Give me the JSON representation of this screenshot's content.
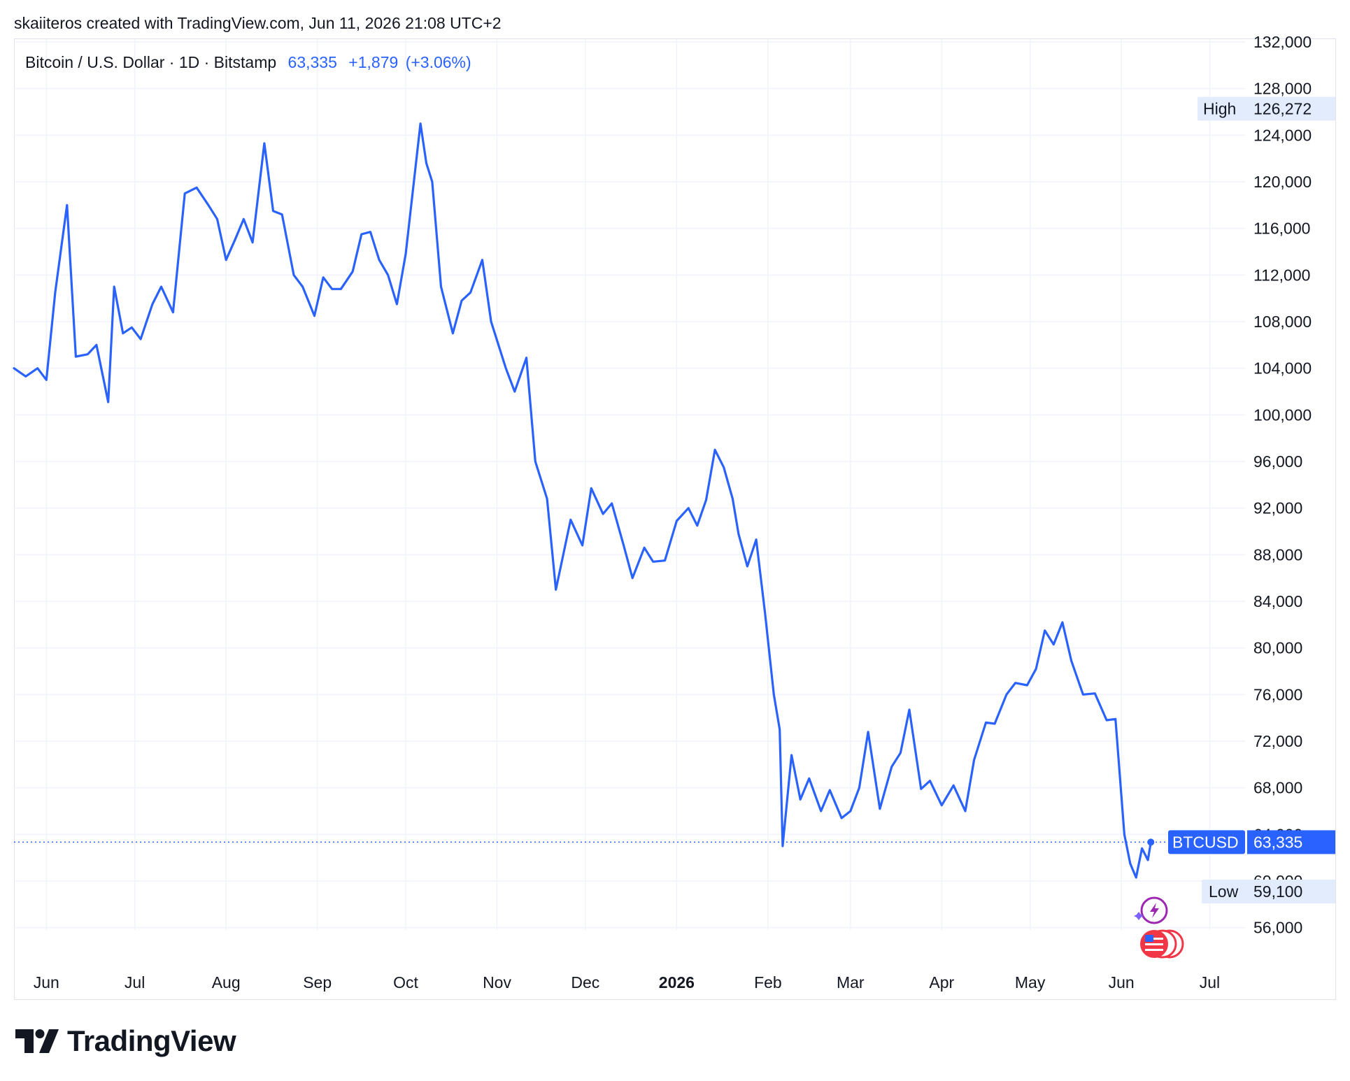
{
  "header": {
    "credit": "skaiiteros created with TradingView.com, Jun 11, 2026 21:08 UTC+2"
  },
  "legend": {
    "symbol": "Bitcoin / U.S. Dollar · 1D · Bitstamp",
    "last": "63,335",
    "change": "+1,879",
    "change_pct": "(+3.06%)"
  },
  "brand": {
    "name": "TradingView"
  },
  "colors": {
    "line": "#2962ff",
    "grid": "#f0f3fa",
    "text": "#131722",
    "badge_bg": "#2962ff",
    "label_bg": "#e3ecfd"
  },
  "icons": [
    "tradingview-logo-icon",
    "lightning-event-icon",
    "us-flag-event-icon"
  ],
  "chart_data": {
    "type": "line",
    "series": [
      {
        "name": "BTCUSD",
        "x": [
          "2025-05-21",
          "2025-05-25",
          "2025-05-29",
          "2025-06-01",
          "2025-06-04",
          "2025-06-08",
          "2025-06-11",
          "2025-06-15",
          "2025-06-18",
          "2025-06-22",
          "2025-06-24",
          "2025-06-27",
          "2025-06-30",
          "2025-07-03",
          "2025-07-07",
          "2025-07-10",
          "2025-07-14",
          "2025-07-18",
          "2025-07-22",
          "2025-07-26",
          "2025-07-29",
          "2025-08-01",
          "2025-08-04",
          "2025-08-07",
          "2025-08-10",
          "2025-08-14",
          "2025-08-17",
          "2025-08-20",
          "2025-08-24",
          "2025-08-27",
          "2025-08-31",
          "2025-09-03",
          "2025-09-06",
          "2025-09-09",
          "2025-09-13",
          "2025-09-16",
          "2025-09-19",
          "2025-09-22",
          "2025-09-25",
          "2025-09-28",
          "2025-10-01",
          "2025-10-06",
          "2025-10-08",
          "2025-10-10",
          "2025-10-13",
          "2025-10-17",
          "2025-10-20",
          "2025-10-23",
          "2025-10-27",
          "2025-10-30",
          "2025-11-04",
          "2025-11-07",
          "2025-11-11",
          "2025-11-14",
          "2025-11-18",
          "2025-11-21",
          "2025-11-26",
          "2025-11-30",
          "2025-12-03",
          "2025-12-07",
          "2025-12-10",
          "2025-12-14",
          "2025-12-17",
          "2025-12-21",
          "2025-12-24",
          "2025-12-28",
          "2026-01-01",
          "2026-01-05",
          "2026-01-08",
          "2026-01-11",
          "2026-01-14",
          "2026-01-17",
          "2026-01-20",
          "2026-01-22",
          "2026-01-25",
          "2026-01-28",
          "2026-01-31",
          "2026-02-03",
          "2026-02-05",
          "2026-02-06",
          "2026-02-09",
          "2026-02-12",
          "2026-02-15",
          "2026-02-19",
          "2026-02-22",
          "2026-02-26",
          "2026-03-01",
          "2026-03-04",
          "2026-03-07",
          "2026-03-11",
          "2026-03-15",
          "2026-03-18",
          "2026-03-21",
          "2026-03-25",
          "2026-03-28",
          "2026-04-01",
          "2026-04-05",
          "2026-04-09",
          "2026-04-12",
          "2026-04-16",
          "2026-04-19",
          "2026-04-23",
          "2026-04-26",
          "2026-04-30",
          "2026-05-03",
          "2026-05-06",
          "2026-05-09",
          "2026-05-12",
          "2026-05-15",
          "2026-05-19",
          "2026-05-23",
          "2026-05-27",
          "2026-05-30",
          "2026-06-02",
          "2026-06-04",
          "2026-06-06",
          "2026-06-08",
          "2026-06-10",
          "2026-06-11"
        ],
        "y": [
          104000,
          103300,
          104000,
          103000,
          110500,
          118000,
          105000,
          105200,
          106000,
          101100,
          111000,
          107000,
          107500,
          106500,
          109500,
          111000,
          108800,
          119000,
          119500,
          118000,
          116800,
          113300,
          115000,
          116800,
          114800,
          123300,
          117500,
          117200,
          112000,
          111000,
          108500,
          111800,
          110800,
          110800,
          112300,
          115500,
          115700,
          113300,
          112000,
          109500,
          113800,
          125000,
          121600,
          120000,
          111000,
          107000,
          109800,
          110500,
          113300,
          108000,
          104000,
          102000,
          104900,
          96000,
          92800,
          85000,
          91000,
          88800,
          93700,
          91500,
          92400,
          88800,
          86000,
          88600,
          87400,
          87500,
          90900,
          92000,
          90500,
          92700,
          97000,
          95500,
          92800,
          89800,
          87000,
          89300,
          83000,
          76000,
          73000,
          63000,
          70800,
          67000,
          68800,
          66000,
          67800,
          65400,
          66000,
          68000,
          72800,
          66200,
          69800,
          71000,
          74700,
          67900,
          68600,
          66500,
          68200,
          66000,
          70400,
          73600,
          73500,
          76000,
          77000,
          76800,
          78200,
          81500,
          80300,
          82200,
          78900,
          76000,
          76100,
          73800,
          73900,
          64000,
          61500,
          60300,
          62800,
          61800,
          63335
        ]
      }
    ],
    "ylim": [
      54600,
      132000
    ],
    "yticks": [
      "132,000",
      "128,000",
      "124,000",
      "120,000",
      "116,000",
      "112,000",
      "108,000",
      "104,000",
      "100,000",
      "96,000",
      "92,000",
      "88,000",
      "84,000",
      "80,000",
      "76,000",
      "72,000",
      "68,000",
      "64,000",
      "60,000",
      "56,000"
    ],
    "xticks": [
      {
        "label": "Jun",
        "date": "2025-06-01",
        "bold": false
      },
      {
        "label": "Jul",
        "date": "2025-07-01",
        "bold": false
      },
      {
        "label": "Aug",
        "date": "2025-08-01",
        "bold": false
      },
      {
        "label": "Sep",
        "date": "2025-09-01",
        "bold": false
      },
      {
        "label": "Oct",
        "date": "2025-10-01",
        "bold": false
      },
      {
        "label": "Nov",
        "date": "2025-11-01",
        "bold": false
      },
      {
        "label": "Dec",
        "date": "2025-12-01",
        "bold": false
      },
      {
        "label": "2026",
        "date": "2026-01-01",
        "bold": true
      },
      {
        "label": "Feb",
        "date": "2026-02-01",
        "bold": false
      },
      {
        "label": "Mar",
        "date": "2026-03-01",
        "bold": false
      },
      {
        "label": "Apr",
        "date": "2026-04-01",
        "bold": false
      },
      {
        "label": "May",
        "date": "2026-05-01",
        "bold": false
      },
      {
        "label": "Jun",
        "date": "2026-06-01",
        "bold": false
      },
      {
        "label": "Jul",
        "date": "2026-07-01",
        "bold": false
      }
    ],
    "xlim": [
      "2025-05-21",
      "2026-07-13"
    ],
    "markers": {
      "high": {
        "label": "High",
        "value": 126272,
        "text": "126,272"
      },
      "low": {
        "label": "Low",
        "value": 59100,
        "text": "59,100"
      },
      "last": {
        "label": "BTCUSD",
        "value": 63335,
        "text": "63,335"
      }
    },
    "grid": true,
    "legend_position": "top-left"
  }
}
